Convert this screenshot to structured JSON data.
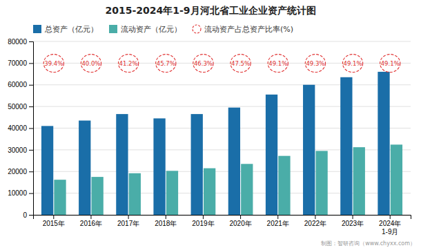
{
  "chart_data": {
    "type": "bar",
    "title": "2015-2024年1-9月河北省工业企业资产统计图",
    "categories": [
      "2015年",
      "2016年",
      "2017年",
      "2018年",
      "2019年",
      "2020年",
      "2021年",
      "2022年",
      "2023年",
      "2024年\n1-9月"
    ],
    "series": [
      {
        "name": "总资产（亿元）",
        "type": "bar",
        "color": "#1a6ea8",
        "values": [
          41000,
          43500,
          46500,
          44500,
          46500,
          49500,
          55500,
          60000,
          63500,
          66000
        ]
      },
      {
        "name": "流动资产（亿元）",
        "type": "bar",
        "color": "#4aada8",
        "values": [
          16200,
          17500,
          19200,
          20300,
          21500,
          23500,
          27200,
          29500,
          31200,
          32400
        ]
      },
      {
        "name": "流动资产占总资产比率(%)",
        "type": "annotation",
        "marker": "circle",
        "line_style": "dashed",
        "color": "#e03030",
        "values": [
          39.4,
          40.0,
          41.2,
          45.7,
          46.3,
          47.5,
          49.1,
          49.3,
          49.1,
          49.1
        ],
        "value_labels": [
          "39.4%",
          "40.0%",
          "41.2%",
          "45.7%",
          "46.3%",
          "47.5%",
          "49.1%",
          "49.3%",
          "49.1%",
          "49.1%"
        ]
      }
    ],
    "ylim": [
      0,
      80000
    ],
    "yticks": [
      0,
      10000,
      20000,
      30000,
      40000,
      50000,
      60000,
      70000,
      80000
    ],
    "grid": true,
    "legend": "top",
    "annotations": [
      "制图：智研咨询（www.chyxx.com）"
    ]
  }
}
